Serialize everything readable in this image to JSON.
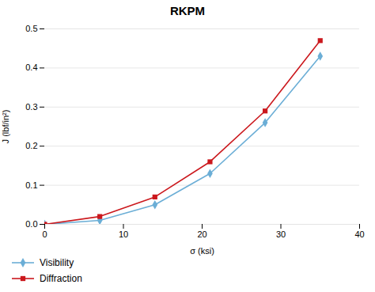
{
  "chart_data": {
    "type": "line",
    "title": "RKPM",
    "xlabel": "σ (ksi)",
    "ylabel": "J (lbf/in²)",
    "x": [
      0,
      7,
      14,
      21,
      28,
      35
    ],
    "series": [
      {
        "name": "Visibility",
        "color": "#6baed6",
        "marker": "diamond",
        "line_style": "solid",
        "values": [
          0.0,
          0.01,
          0.05,
          0.13,
          0.26,
          0.43
        ]
      },
      {
        "name": "Diffraction",
        "color": "#cb181d",
        "marker": "square",
        "line_style": "solid",
        "values": [
          0.0,
          0.02,
          0.07,
          0.16,
          0.29,
          0.47
        ]
      }
    ],
    "xlim": [
      0,
      40
    ],
    "xticks": [
      0,
      10,
      20,
      30,
      40
    ],
    "ylim": [
      0,
      0.5
    ],
    "yticks": [
      {
        "value": 0,
        "label": "0.0"
      },
      0.1,
      0.2,
      0.3,
      0.4,
      0.5
    ],
    "grid": "y",
    "legend": "lower left"
  }
}
